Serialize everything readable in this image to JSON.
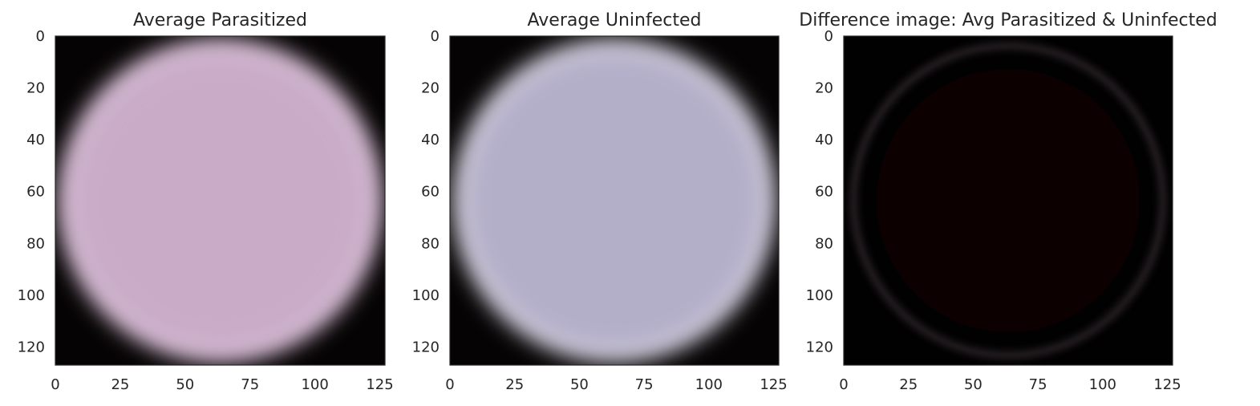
{
  "chart_data": [
    {
      "type": "image",
      "title": "Average Parasitized",
      "xlim": [
        0,
        127
      ],
      "ylim": [
        127,
        0
      ],
      "x_ticks": [
        "0",
        "25",
        "50",
        "75",
        "100",
        "125"
      ],
      "y_ticks": [
        "0",
        "20",
        "40",
        "60",
        "80",
        "100",
        "120"
      ],
      "grid": false,
      "image": {
        "content": "blurred round red blood cell on black background",
        "center_color": "#c9abc8",
        "edge_color": "#d8c0d6",
        "background": "#050303"
      }
    },
    {
      "type": "image",
      "title": "Average Uninfected",
      "xlim": [
        0,
        127
      ],
      "ylim": [
        127,
        0
      ],
      "x_ticks": [
        "0",
        "25",
        "50",
        "75",
        "100",
        "125"
      ],
      "y_ticks": [
        "0",
        "20",
        "40",
        "60",
        "80",
        "100",
        "120"
      ],
      "grid": false,
      "image": {
        "content": "blurred round red blood cell on black background",
        "center_color": "#b4afc9",
        "edge_color": "#d2ceda",
        "background": "#050303"
      }
    },
    {
      "type": "image",
      "title": "Difference image: Avg Parasitized & Uninfected",
      "xlim": [
        0,
        127
      ],
      "ylim": [
        127,
        0
      ],
      "x_ticks": [
        "0",
        "25",
        "50",
        "75",
        "100",
        "125"
      ],
      "y_ticks": [
        "0",
        "20",
        "40",
        "60",
        "80",
        "100",
        "120"
      ],
      "grid": false,
      "image": {
        "content": "nearly black difference image with faint ring near edges",
        "center_color": "#0d0303",
        "edge_color": "#6a5a66",
        "background": "#020101"
      }
    }
  ]
}
